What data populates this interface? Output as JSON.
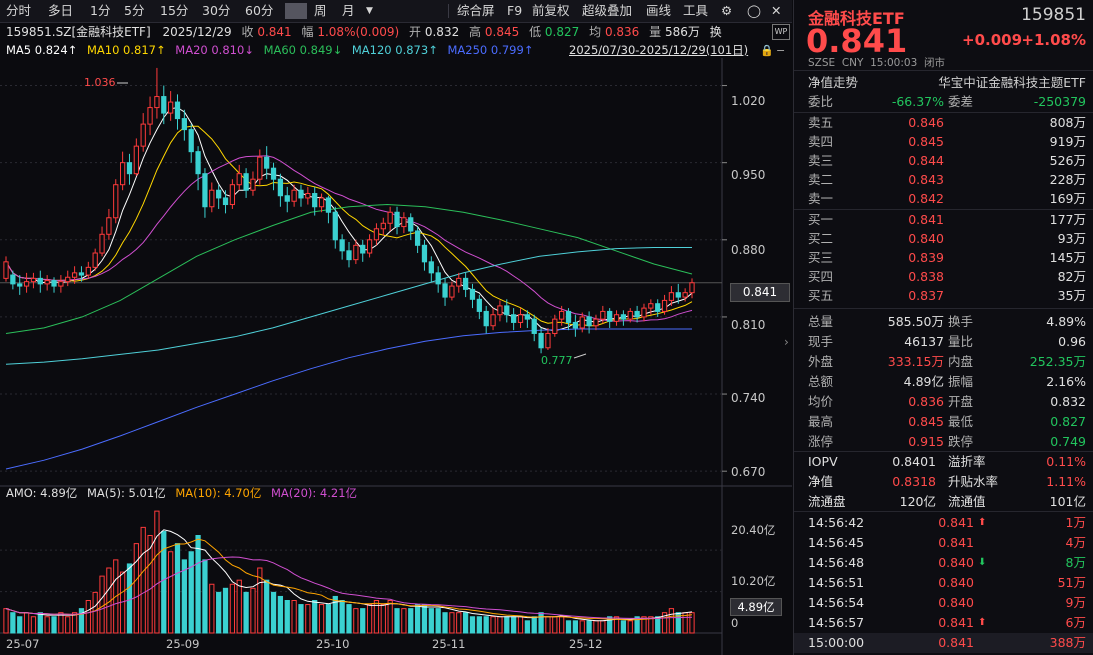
{
  "toolbar": {
    "items": [
      "分时",
      "多日",
      "1分",
      "5分",
      "15分",
      "30分",
      "60分",
      "周",
      "月"
    ],
    "right_items": [
      "综合屏",
      "F9",
      "前复权",
      "超级叠加",
      "画线",
      "工具"
    ],
    "active_index": 6
  },
  "info_line": {
    "code": "159851.SZ[金融科技ETF]",
    "date": "2025/12/29",
    "close_label": "收",
    "close": "0.841",
    "change_label": "幅",
    "change": "1.08%(0.009)",
    "open_label": "开",
    "open": "0.832",
    "high_label": "高",
    "high": "0.845",
    "low_label": "低",
    "low": "0.827",
    "avg_label": "均",
    "avg": "0.836",
    "vol_label": "量",
    "vol": "586万",
    "switch_label": "换"
  },
  "ma_line": {
    "ma5": "MA5 0.824↑",
    "ma10": "MA10 0.817↑",
    "ma20": "MA20 0.810↓",
    "ma60": "MA60 0.849↓",
    "ma120": "MA120 0.873↑",
    "ma250": "MA250 0.799↑",
    "range": "2025/07/30-2025/12/29(101日)"
  },
  "chart_data": {
    "type": "candlestick",
    "price_axis": [
      "1.020",
      "0.950",
      "0.880",
      "0.810",
      "0.740",
      "0.670"
    ],
    "ylim": [
      0.662,
      1.045
    ],
    "current_price": "0.841",
    "high_marker": "1.036",
    "low_marker": "0.777",
    "x_labels": [
      "25-07",
      "25-09",
      "25-10",
      "25-11",
      "25-12"
    ],
    "volume_axis": [
      "20.40亿",
      "10.20亿",
      "0"
    ],
    "current_volume": "4.89亿",
    "amo_line": {
      "amo": "AMO: 4.89亿",
      "ma5": "MA(5): 5.01亿",
      "ma10": "MA(10): 4.70亿",
      "ma20": "MA(20): 4.21亿"
    },
    "candles": [
      [
        0.845,
        0.86,
        0.842,
        0.865
      ],
      [
        0.848,
        0.84,
        0.835,
        0.852
      ],
      [
        0.84,
        0.838,
        0.83,
        0.848
      ],
      [
        0.838,
        0.842,
        0.832,
        0.85
      ],
      [
        0.842,
        0.845,
        0.836,
        0.85
      ],
      [
        0.845,
        0.84,
        0.832,
        0.852
      ],
      [
        0.84,
        0.843,
        0.834,
        0.848
      ],
      [
        0.843,
        0.838,
        0.832,
        0.846
      ],
      [
        0.838,
        0.842,
        0.832,
        0.848
      ],
      [
        0.842,
        0.846,
        0.838,
        0.852
      ],
      [
        0.846,
        0.85,
        0.84,
        0.856
      ],
      [
        0.85,
        0.848,
        0.842,
        0.856
      ],
      [
        0.848,
        0.855,
        0.845,
        0.86
      ],
      [
        0.855,
        0.868,
        0.852,
        0.872
      ],
      [
        0.868,
        0.885,
        0.865,
        0.892
      ],
      [
        0.885,
        0.9,
        0.88,
        0.908
      ],
      [
        0.9,
        0.93,
        0.895,
        0.935
      ],
      [
        0.93,
        0.95,
        0.925,
        0.96
      ],
      [
        0.95,
        0.94,
        0.93,
        0.958
      ],
      [
        0.94,
        0.965,
        0.938,
        0.972
      ],
      [
        0.965,
        0.985,
        0.96,
        0.995
      ],
      [
        0.985,
        1.0,
        0.975,
        1.01
      ],
      [
        1.0,
        1.01,
        0.99,
        1.036
      ],
      [
        1.01,
        0.995,
        0.985,
        1.02
      ],
      [
        0.995,
        1.005,
        0.988,
        1.015
      ],
      [
        1.005,
        0.99,
        0.98,
        1.012
      ],
      [
        0.99,
        0.98,
        0.97,
        0.998
      ],
      [
        0.98,
        0.96,
        0.95,
        0.985
      ],
      [
        0.96,
        0.94,
        0.925,
        0.965
      ],
      [
        0.94,
        0.91,
        0.9,
        0.945
      ],
      [
        0.91,
        0.925,
        0.905,
        0.932
      ],
      [
        0.925,
        0.918,
        0.908,
        0.93
      ],
      [
        0.918,
        0.912,
        0.904,
        0.925
      ],
      [
        0.912,
        0.93,
        0.908,
        0.935
      ],
      [
        0.93,
        0.94,
        0.925,
        0.948
      ],
      [
        0.94,
        0.925,
        0.918,
        0.945
      ],
      [
        0.925,
        0.935,
        0.92,
        0.942
      ],
      [
        0.935,
        0.955,
        0.93,
        0.962
      ],
      [
        0.955,
        0.945,
        0.935,
        0.965
      ],
      [
        0.945,
        0.935,
        0.925,
        0.95
      ],
      [
        0.935,
        0.92,
        0.91,
        0.94
      ],
      [
        0.92,
        0.915,
        0.905,
        0.928
      ],
      [
        0.915,
        0.925,
        0.91,
        0.93
      ],
      [
        0.925,
        0.918,
        0.91,
        0.93
      ],
      [
        0.918,
        0.922,
        0.912,
        0.928
      ],
      [
        0.922,
        0.91,
        0.902,
        0.928
      ],
      [
        0.91,
        0.918,
        0.905,
        0.922
      ],
      [
        0.918,
        0.905,
        0.895,
        0.92
      ],
      [
        0.905,
        0.88,
        0.872,
        0.91
      ],
      [
        0.88,
        0.87,
        0.862,
        0.885
      ],
      [
        0.87,
        0.862,
        0.855,
        0.878
      ],
      [
        0.862,
        0.875,
        0.858,
        0.88
      ],
      [
        0.875,
        0.868,
        0.86,
        0.88
      ],
      [
        0.868,
        0.88,
        0.864,
        0.885
      ],
      [
        0.88,
        0.89,
        0.875,
        0.895
      ],
      [
        0.89,
        0.895,
        0.884,
        0.9
      ],
      [
        0.895,
        0.905,
        0.888,
        0.91
      ],
      [
        0.905,
        0.892,
        0.885,
        0.91
      ],
      [
        0.892,
        0.9,
        0.886,
        0.905
      ],
      [
        0.9,
        0.888,
        0.88,
        0.904
      ],
      [
        0.888,
        0.875,
        0.868,
        0.892
      ],
      [
        0.875,
        0.86,
        0.852,
        0.88
      ],
      [
        0.86,
        0.85,
        0.842,
        0.865
      ],
      [
        0.85,
        0.84,
        0.832,
        0.856
      ],
      [
        0.84,
        0.828,
        0.82,
        0.845
      ],
      [
        0.828,
        0.838,
        0.825,
        0.842
      ],
      [
        0.838,
        0.845,
        0.832,
        0.85
      ],
      [
        0.845,
        0.835,
        0.828,
        0.85
      ],
      [
        0.835,
        0.826,
        0.818,
        0.84
      ],
      [
        0.826,
        0.815,
        0.808,
        0.83
      ],
      [
        0.815,
        0.802,
        0.795,
        0.82
      ],
      [
        0.802,
        0.812,
        0.798,
        0.818
      ],
      [
        0.812,
        0.82,
        0.806,
        0.825
      ],
      [
        0.82,
        0.812,
        0.805,
        0.826
      ],
      [
        0.812,
        0.805,
        0.798,
        0.818
      ],
      [
        0.805,
        0.812,
        0.8,
        0.818
      ],
      [
        0.812,
        0.808,
        0.8,
        0.816
      ],
      [
        0.808,
        0.795,
        0.788,
        0.812
      ],
      [
        0.795,
        0.782,
        0.777,
        0.8
      ],
      [
        0.782,
        0.795,
        0.78,
        0.8
      ],
      [
        0.795,
        0.808,
        0.792,
        0.812
      ],
      [
        0.808,
        0.815,
        0.802,
        0.82
      ],
      [
        0.815,
        0.805,
        0.798,
        0.818
      ],
      [
        0.805,
        0.8,
        0.792,
        0.812
      ],
      [
        0.8,
        0.81,
        0.796,
        0.814
      ],
      [
        0.81,
        0.802,
        0.795,
        0.815
      ],
      [
        0.802,
        0.808,
        0.798,
        0.812
      ],
      [
        0.808,
        0.815,
        0.804,
        0.82
      ],
      [
        0.815,
        0.806,
        0.8,
        0.818
      ],
      [
        0.806,
        0.812,
        0.802,
        0.816
      ],
      [
        0.812,
        0.808,
        0.802,
        0.816
      ],
      [
        0.808,
        0.815,
        0.805,
        0.818
      ],
      [
        0.815,
        0.81,
        0.805,
        0.82
      ],
      [
        0.81,
        0.818,
        0.806,
        0.822
      ],
      [
        0.818,
        0.822,
        0.812,
        0.826
      ],
      [
        0.822,
        0.815,
        0.81,
        0.826
      ],
      [
        0.815,
        0.825,
        0.812,
        0.83
      ],
      [
        0.825,
        0.832,
        0.82,
        0.838
      ],
      [
        0.832,
        0.828,
        0.822,
        0.84
      ],
      [
        0.828,
        0.832,
        0.824,
        0.836
      ],
      [
        0.832,
        0.841,
        0.827,
        0.845
      ]
    ],
    "volumes": [
      6,
      5,
      4,
      5,
      4,
      5,
      4,
      4,
      5,
      4,
      5,
      6,
      8,
      10,
      14,
      16,
      18,
      15,
      17,
      22,
      26,
      24,
      30,
      25,
      20,
      22,
      18,
      20,
      24,
      18,
      12,
      10,
      11,
      12,
      13,
      10,
      11,
      16,
      13,
      10,
      9,
      8,
      8,
      7,
      7,
      8,
      7,
      7,
      9,
      8,
      7,
      6,
      6,
      7,
      8,
      7,
      8,
      6,
      6,
      6,
      7,
      7,
      6,
      6,
      5,
      5,
      5,
      5,
      4,
      4,
      4,
      4,
      4,
      4,
      4,
      4,
      3,
      4,
      5,
      4,
      4,
      4,
      3,
      3,
      3,
      3,
      3,
      3,
      4,
      4,
      3,
      3,
      4,
      4,
      4,
      4,
      5,
      6,
      5,
      5,
      5
    ],
    "ma_lines": {
      "ma5": {
        "color": "#ffffff"
      },
      "ma10": {
        "color": "#ffd700"
      },
      "ma20": {
        "color": "#d04fd0"
      },
      "ma60": {
        "color": "#2bbf5a"
      },
      "ma120": {
        "color": "#4fd0d8"
      },
      "ma250": {
        "color": "#4b6cff"
      }
    }
  },
  "right_panel": {
    "name": "金融科技ETF",
    "code": "159851",
    "price": "0.841",
    "change": "+0.009",
    "change_pct": "+1.08%",
    "market_line": "SZSE  CNY  15:00:03  闭市",
    "nav_trend": "净值走势",
    "index_name": "华宝中证金融科技主题ETF",
    "webi_label": "委比",
    "webi": "-66.37%",
    "weicha_label": "委差",
    "weicha": "-250379",
    "asks": [
      {
        "label": "卖五",
        "price": "0.846",
        "vol": "808万"
      },
      {
        "label": "卖四",
        "price": "0.845",
        "vol": "919万"
      },
      {
        "label": "卖三",
        "price": "0.844",
        "vol": "526万"
      },
      {
        "label": "卖二",
        "price": "0.843",
        "vol": "228万"
      },
      {
        "label": "卖一",
        "price": "0.842",
        "vol": "169万"
      }
    ],
    "bids": [
      {
        "label": "买一",
        "price": "0.841",
        "vol": "177万"
      },
      {
        "label": "买二",
        "price": "0.840",
        "vol": "93万"
      },
      {
        "label": "买三",
        "price": "0.839",
        "vol": "145万"
      },
      {
        "label": "买四",
        "price": "0.838",
        "vol": "82万"
      },
      {
        "label": "买五",
        "price": "0.837",
        "vol": "35万"
      }
    ],
    "stats": [
      {
        "l1": "总量",
        "v1": "585.50万",
        "c1": "white",
        "l2": "换手",
        "v2": "4.89%",
        "c2": "white"
      },
      {
        "l1": "现手",
        "v1": "46137",
        "c1": "white",
        "l2": "量比",
        "v2": "0.96",
        "c2": "white"
      },
      {
        "l1": "外盘",
        "v1": "333.15万",
        "c1": "red",
        "l2": "内盘",
        "v2": "252.35万",
        "c2": "green"
      },
      {
        "l1": "总额",
        "v1": "4.89亿",
        "c1": "white",
        "l2": "振幅",
        "v2": "2.16%",
        "c2": "white"
      },
      {
        "l1": "均价",
        "v1": "0.836",
        "c1": "red",
        "l2": "开盘",
        "v2": "0.832",
        "c2": "white"
      },
      {
        "l1": "最高",
        "v1": "0.845",
        "c1": "red",
        "l2": "最低",
        "v2": "0.827",
        "c2": "green"
      },
      {
        "l1": "涨停",
        "v1": "0.915",
        "c1": "red",
        "l2": "跌停",
        "v2": "0.749",
        "c2": "green"
      }
    ],
    "iopv_rows": [
      {
        "l1": "IOPV",
        "v1": "0.8401",
        "c1": "white",
        "l2": "溢折率",
        "v2": "0.11%",
        "c2": "red"
      },
      {
        "l1": "净值",
        "v1": "0.8318",
        "c1": "red",
        "l2": "升贴水率",
        "v2": "1.11%",
        "c2": "red"
      },
      {
        "l1": "流通盘",
        "v1": "120亿",
        "c1": "white",
        "l2": "流通值",
        "v2": "101亿",
        "c2": "white"
      }
    ],
    "ticks": [
      {
        "time": "14:56:42",
        "price": "0.841",
        "arrow": "up",
        "vol": "1万"
      },
      {
        "time": "14:56:45",
        "price": "0.841",
        "arrow": "",
        "vol": "4万"
      },
      {
        "time": "14:56:48",
        "price": "0.840",
        "arrow": "down",
        "vol": "8万"
      },
      {
        "time": "14:56:51",
        "price": "0.840",
        "arrow": "",
        "vol": "51万"
      },
      {
        "time": "14:56:54",
        "price": "0.840",
        "arrow": "",
        "vol": "9万"
      },
      {
        "time": "14:56:57",
        "price": "0.841",
        "arrow": "up",
        "vol": "6万"
      },
      {
        "time": "15:00:00",
        "price": "0.841",
        "arrow": "",
        "vol": "388万"
      }
    ]
  }
}
